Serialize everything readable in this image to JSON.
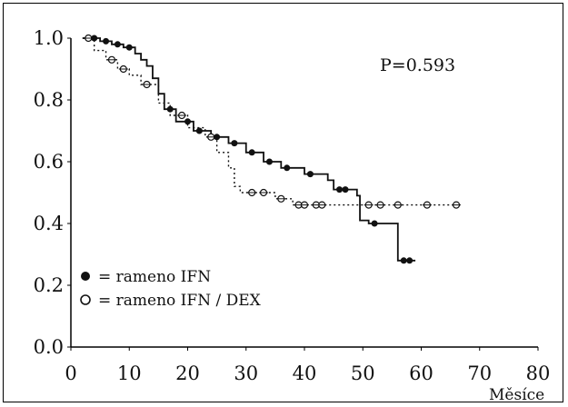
{
  "chart_data": {
    "type": "line",
    "title": "",
    "xlabel": "Měsíce",
    "ylabel": "",
    "xlim": [
      0,
      80
    ],
    "ylim": [
      0.0,
      1.0
    ],
    "x_ticks": [
      "0",
      "10",
      "20",
      "30",
      "40",
      "50",
      "60",
      "70",
      "80"
    ],
    "y_ticks": [
      "0.0",
      "0.2",
      "0.4",
      "0.6",
      "0.8",
      "1.0"
    ],
    "annotation": "P=0.593",
    "grid": false,
    "legend_position": "bottom-left",
    "series": [
      {
        "name": "= rameno IFN",
        "marker": "filled-circle",
        "style": "solid",
        "points": [
          [
            2,
            1.0
          ],
          [
            5,
            0.99
          ],
          [
            7,
            0.98
          ],
          [
            9,
            0.97
          ],
          [
            11,
            0.95
          ],
          [
            12,
            0.93
          ],
          [
            13,
            0.91
          ],
          [
            14,
            0.87
          ],
          [
            15,
            0.82
          ],
          [
            16,
            0.77
          ],
          [
            18,
            0.73
          ],
          [
            21,
            0.7
          ],
          [
            24,
            0.68
          ],
          [
            27,
            0.66
          ],
          [
            30,
            0.63
          ],
          [
            33,
            0.6
          ],
          [
            36,
            0.58
          ],
          [
            40,
            0.56
          ],
          [
            44,
            0.54
          ],
          [
            45,
            0.51
          ],
          [
            49,
            0.49
          ],
          [
            49.5,
            0.41
          ],
          [
            51,
            0.4
          ],
          [
            55,
            0.4
          ],
          [
            56,
            0.28
          ],
          [
            59,
            0.28
          ]
        ],
        "censored_x": [
          4,
          6,
          8,
          10,
          17,
          20,
          22,
          25,
          28,
          31,
          34,
          37,
          41,
          46,
          47,
          52,
          57,
          58
        ]
      },
      {
        "name": "= rameno IFN / DEX",
        "marker": "open-circle",
        "style": "dotted",
        "points": [
          [
            2,
            1.0
          ],
          [
            4,
            0.96
          ],
          [
            6,
            0.93
          ],
          [
            8,
            0.9
          ],
          [
            10,
            0.88
          ],
          [
            12,
            0.85
          ],
          [
            15,
            0.79
          ],
          [
            17,
            0.75
          ],
          [
            20,
            0.71
          ],
          [
            23,
            0.68
          ],
          [
            25,
            0.63
          ],
          [
            27,
            0.58
          ],
          [
            28,
            0.52
          ],
          [
            29,
            0.5
          ],
          [
            35,
            0.48
          ],
          [
            38,
            0.46
          ],
          [
            49,
            0.46
          ],
          [
            66,
            0.46
          ]
        ],
        "censored_x": [
          3,
          7,
          9,
          13,
          19,
          24,
          31,
          33,
          36,
          39,
          40,
          42,
          43,
          51,
          53,
          56,
          61,
          66
        ]
      }
    ]
  }
}
